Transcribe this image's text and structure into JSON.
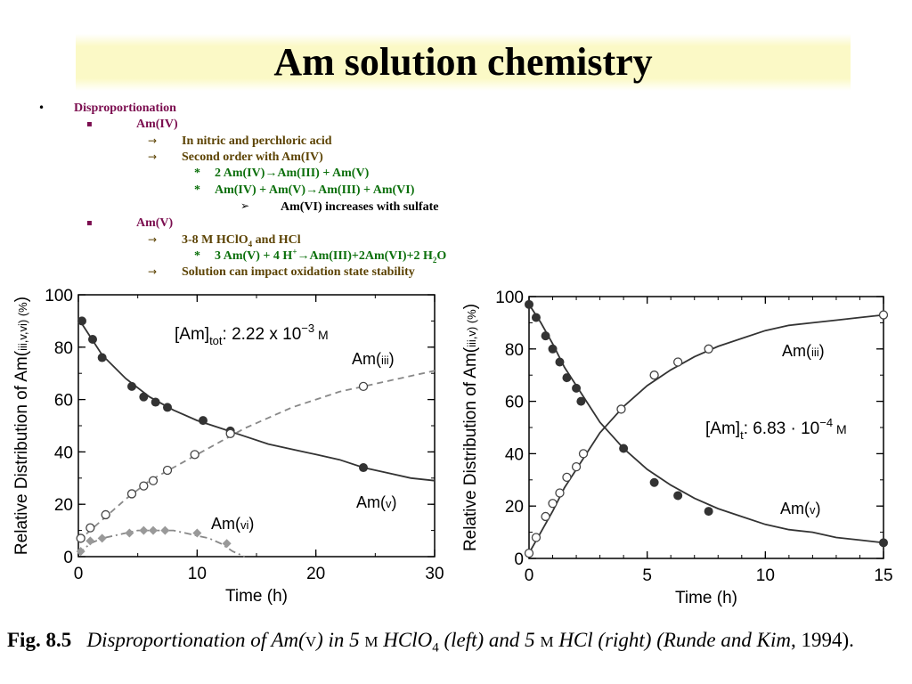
{
  "title": "Am solution chemistry",
  "bullets": {
    "l1": "Disproportionation",
    "amiv": "Am(IV)",
    "nitric": "In nitric and perchloric acid",
    "second_order": "Second order with Am(IV)",
    "eq1_lhs": "2 Am(IV)",
    "eq1_rhs": "Am(III) + Am(V)",
    "eq2_lhs": "Am(IV) + Am(V)",
    "eq2_rhs": "Am(III) + Am(VI)",
    "sulfate": "Am(VI) increases with sulfate",
    "amv": "Am(V)",
    "hclo4_pre": "3-8 M HClO",
    "hclo4_sub": "4",
    "hclo4_post": " and HCl",
    "eq3_lhs": "3 Am(V) + 4 H",
    "eq3_sup": "+",
    "eq3_rhs": "Am(III)+2Am(VI)+2 H",
    "eq3_sub": "2",
    "eq3_end": "O",
    "solution": "Solution can impact oxidation state stability",
    "marker_bullet": "•",
    "marker_square": "▪",
    "marker_arrow": "→",
    "marker_star": "*",
    "marker_tri": "➢"
  },
  "colors": {
    "bullet_l1": "#7b0d4f",
    "bullet_arrow": "#5c4303",
    "bullet_eq": "#0b6f0b",
    "title_band": "#fbf9c6"
  },
  "chart_data": [
    {
      "type": "scatter",
      "xlabel": "Time (h)",
      "ylabel": "Relative Distribution of Am(III,V,VI) (%)",
      "xlim": [
        0,
        30
      ],
      "ylim": [
        0,
        100
      ],
      "xticks": [
        0,
        10,
        20,
        30
      ],
      "yticks": [
        0,
        20,
        40,
        60,
        80,
        100
      ],
      "grid": false,
      "annotation": "[Am]tot: 2.22 x 10−3 M",
      "series": [
        {
          "name": "Am(V)",
          "marker": "filled-circle",
          "line": "solid",
          "x": [
            0.3,
            1.2,
            2.0,
            4.5,
            5.5,
            6.5,
            7.5,
            10.5,
            12.8,
            24.0
          ],
          "y": [
            90,
            83,
            76,
            65,
            61,
            59,
            57,
            52,
            48,
            34
          ],
          "fit_x": [
            0,
            2,
            4,
            6,
            8,
            10,
            12,
            14,
            16,
            18,
            20,
            22,
            24,
            26,
            28,
            30
          ],
          "fit_y": [
            91,
            77,
            68,
            61,
            56,
            52,
            49,
            46,
            43,
            41,
            39,
            37,
            34,
            32,
            30,
            29
          ]
        },
        {
          "name": "Am(III)",
          "marker": "open-circle",
          "line": "dashed",
          "x": [
            0.2,
            1.0,
            2.3,
            4.5,
            5.5,
            6.3,
            7.5,
            9.8,
            12.8,
            24.0
          ],
          "y": [
            7,
            11,
            16,
            24,
            27,
            29,
            33,
            39,
            47,
            65
          ],
          "fit_x": [
            0,
            2,
            4,
            6,
            8,
            10,
            12,
            14,
            16,
            18,
            20,
            22,
            24,
            26,
            28,
            30
          ],
          "fit_y": [
            6,
            14,
            22,
            29,
            34,
            39,
            44,
            49,
            53,
            57,
            60,
            63,
            65,
            67,
            69,
            71
          ]
        },
        {
          "name": "Am(VI)",
          "marker": "filled-diamond",
          "line": "dash-dot",
          "x": [
            0.2,
            1.0,
            2.0,
            4.3,
            5.5,
            6.3,
            7.3,
            10.0,
            12.5
          ],
          "y": [
            2,
            6,
            7,
            9,
            10,
            10,
            10,
            9,
            5
          ],
          "fit_x": [
            0,
            1,
            2,
            3,
            4,
            5,
            6,
            7,
            8,
            9,
            10,
            11,
            12,
            13,
            14
          ],
          "fit_y": [
            1,
            5,
            7,
            8,
            9,
            10,
            10,
            10,
            10,
            9,
            8,
            7,
            5,
            2,
            0
          ]
        }
      ]
    },
    {
      "type": "scatter",
      "xlabel": "Time (h)",
      "ylabel": "Relative Distribution of Am(III,V) (%)",
      "xlim": [
        0,
        15
      ],
      "ylim": [
        0,
        100
      ],
      "xticks": [
        0,
        5,
        10,
        15
      ],
      "yticks": [
        0,
        20,
        40,
        60,
        80,
        100
      ],
      "grid": false,
      "annotation": "[Am]t: 6.83 · 10−4 M",
      "series": [
        {
          "name": "Am(V)",
          "marker": "filled-circle",
          "line": "solid",
          "x": [
            0,
            0.3,
            0.7,
            1.0,
            1.3,
            1.6,
            2.0,
            2.2,
            4.0,
            5.3,
            6.3,
            7.6,
            15.0
          ],
          "y": [
            97,
            92,
            85,
            80,
            75,
            69,
            65,
            60,
            42,
            29,
            24,
            18,
            6
          ],
          "fit_x": [
            0,
            0.5,
            1,
            1.5,
            2,
            2.5,
            3,
            3.5,
            4,
            5,
            6,
            7,
            8,
            9,
            10,
            11,
            12,
            13,
            14,
            15
          ],
          "fit_y": [
            97,
            90,
            82,
            73,
            66,
            59,
            52,
            47,
            42,
            34,
            28,
            23,
            19,
            16,
            13,
            11,
            10,
            8,
            7,
            6
          ]
        },
        {
          "name": "Am(III)",
          "marker": "open-circle",
          "line": "solid",
          "x": [
            0,
            0.3,
            0.7,
            1.0,
            1.3,
            1.6,
            2.0,
            2.3,
            3.9,
            5.3,
            6.3,
            7.6,
            15.0
          ],
          "y": [
            2,
            8,
            16,
            21,
            25,
            31,
            35,
            40,
            57,
            70,
            75,
            80,
            93
          ],
          "fit_x": [
            0,
            0.5,
            1,
            1.5,
            2,
            2.5,
            3,
            3.5,
            4,
            5,
            6,
            7,
            8,
            9,
            10,
            11,
            12,
            13,
            14,
            15
          ],
          "fit_y": [
            2,
            10,
            18,
            27,
            34,
            41,
            48,
            53,
            58,
            66,
            72,
            77,
            81,
            84,
            87,
            89,
            90,
            91,
            92,
            93
          ]
        }
      ]
    }
  ],
  "chart_labels": {
    "left_annot_pre": "[Am]",
    "left_annot_sub": "tot",
    "left_annot_post": ": 2.22 x 10",
    "left_annot_exp": "−3",
    "left_annot_unit": " M",
    "left_am3": "Am(III)",
    "left_am5": "Am(V)",
    "left_am6": "Am(VI)",
    "right_annot_pre": "[Am]",
    "right_annot_sub": "t",
    "right_annot_post": ": 6.83 · 10",
    "right_annot_exp": "−4",
    "right_annot_unit": " M",
    "right_am3": "Am(III)",
    "right_am5": "Am(V)"
  },
  "caption": {
    "fig": "Fig. 8.5",
    "t1": "Disproportionation of Am(",
    "t1v": "V",
    "t2": ") in 5 ",
    "m1": "M",
    "t3": " HClO",
    "sub4": "4",
    "t4": " (left) and 5 ",
    "m2": "M",
    "t5": " HCl (right) (",
    "ref": "Runde and Kim",
    "t6": ", 1994)."
  }
}
